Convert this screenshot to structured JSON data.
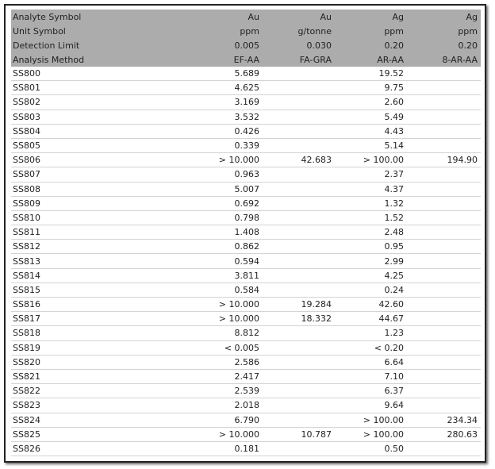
{
  "table": {
    "header": [
      [
        "Analyte Symbol",
        "Au",
        "Au",
        "Ag",
        "Ag"
      ],
      [
        "Unit Symbol",
        "ppm",
        "g/tonne",
        "ppm",
        "ppm"
      ],
      [
        "Detection Limit",
        "0.005",
        "0.030",
        "0.20",
        "0.20"
      ],
      [
        "Analysis Method",
        "EF-AA",
        "FA-GRA",
        "AR-AA",
        "8-AR-AA"
      ]
    ],
    "rows": [
      [
        "SS800",
        "5.689",
        null,
        "19.52",
        null
      ],
      [
        "SS801",
        "4.625",
        null,
        "9.75",
        null
      ],
      [
        "SS802",
        "3.169",
        null,
        "2.60",
        null
      ],
      [
        "SS803",
        "3.532",
        null,
        "5.49",
        null
      ],
      [
        "SS804",
        "0.426",
        null,
        "4.43",
        null
      ],
      [
        "SS805",
        "0.339",
        null,
        "5.14",
        null
      ],
      [
        "SS806",
        "> 10.000",
        "42.683",
        "> 100.00",
        "194.90"
      ],
      [
        "SS807",
        "0.963",
        null,
        "2.37",
        null
      ],
      [
        "SS808",
        "5.007",
        null,
        "4.37",
        null
      ],
      [
        "SS809",
        "0.692",
        null,
        "1.32",
        null
      ],
      [
        "SS810",
        "0.798",
        null,
        "1.52",
        null
      ],
      [
        "SS811",
        "1.408",
        null,
        "2.48",
        null
      ],
      [
        "SS812",
        "0.862",
        null,
        "0.95",
        null
      ],
      [
        "SS813",
        "0.594",
        null,
        "2.99",
        null
      ],
      [
        "SS814",
        "3.811",
        null,
        "4.25",
        null
      ],
      [
        "SS815",
        "0.584",
        null,
        "0.24",
        null
      ],
      [
        "SS816",
        "> 10.000",
        "19.284",
        "42.60",
        null
      ],
      [
        "SS817",
        "> 10.000",
        "18.332",
        "44.67",
        null
      ],
      [
        "SS818",
        "8.812",
        null,
        "1.23",
        null
      ],
      [
        "SS819",
        "< 0.005",
        null,
        "< 0.20",
        null
      ],
      [
        "SS820",
        "2.586",
        null,
        "6.64",
        null
      ],
      [
        "SS821",
        "2.417",
        null,
        "7.10",
        null
      ],
      [
        "SS822",
        "2.539",
        null,
        "6.37",
        null
      ],
      [
        "SS823",
        "2.018",
        null,
        "9.64",
        null
      ],
      [
        "SS824",
        "6.790",
        null,
        "> 100.00",
        "234.34"
      ],
      [
        "SS825",
        "> 10.000",
        "10.787",
        "> 100.00",
        "280.63"
      ],
      [
        "SS826",
        "0.181",
        null,
        "0.50",
        null
      ]
    ]
  }
}
